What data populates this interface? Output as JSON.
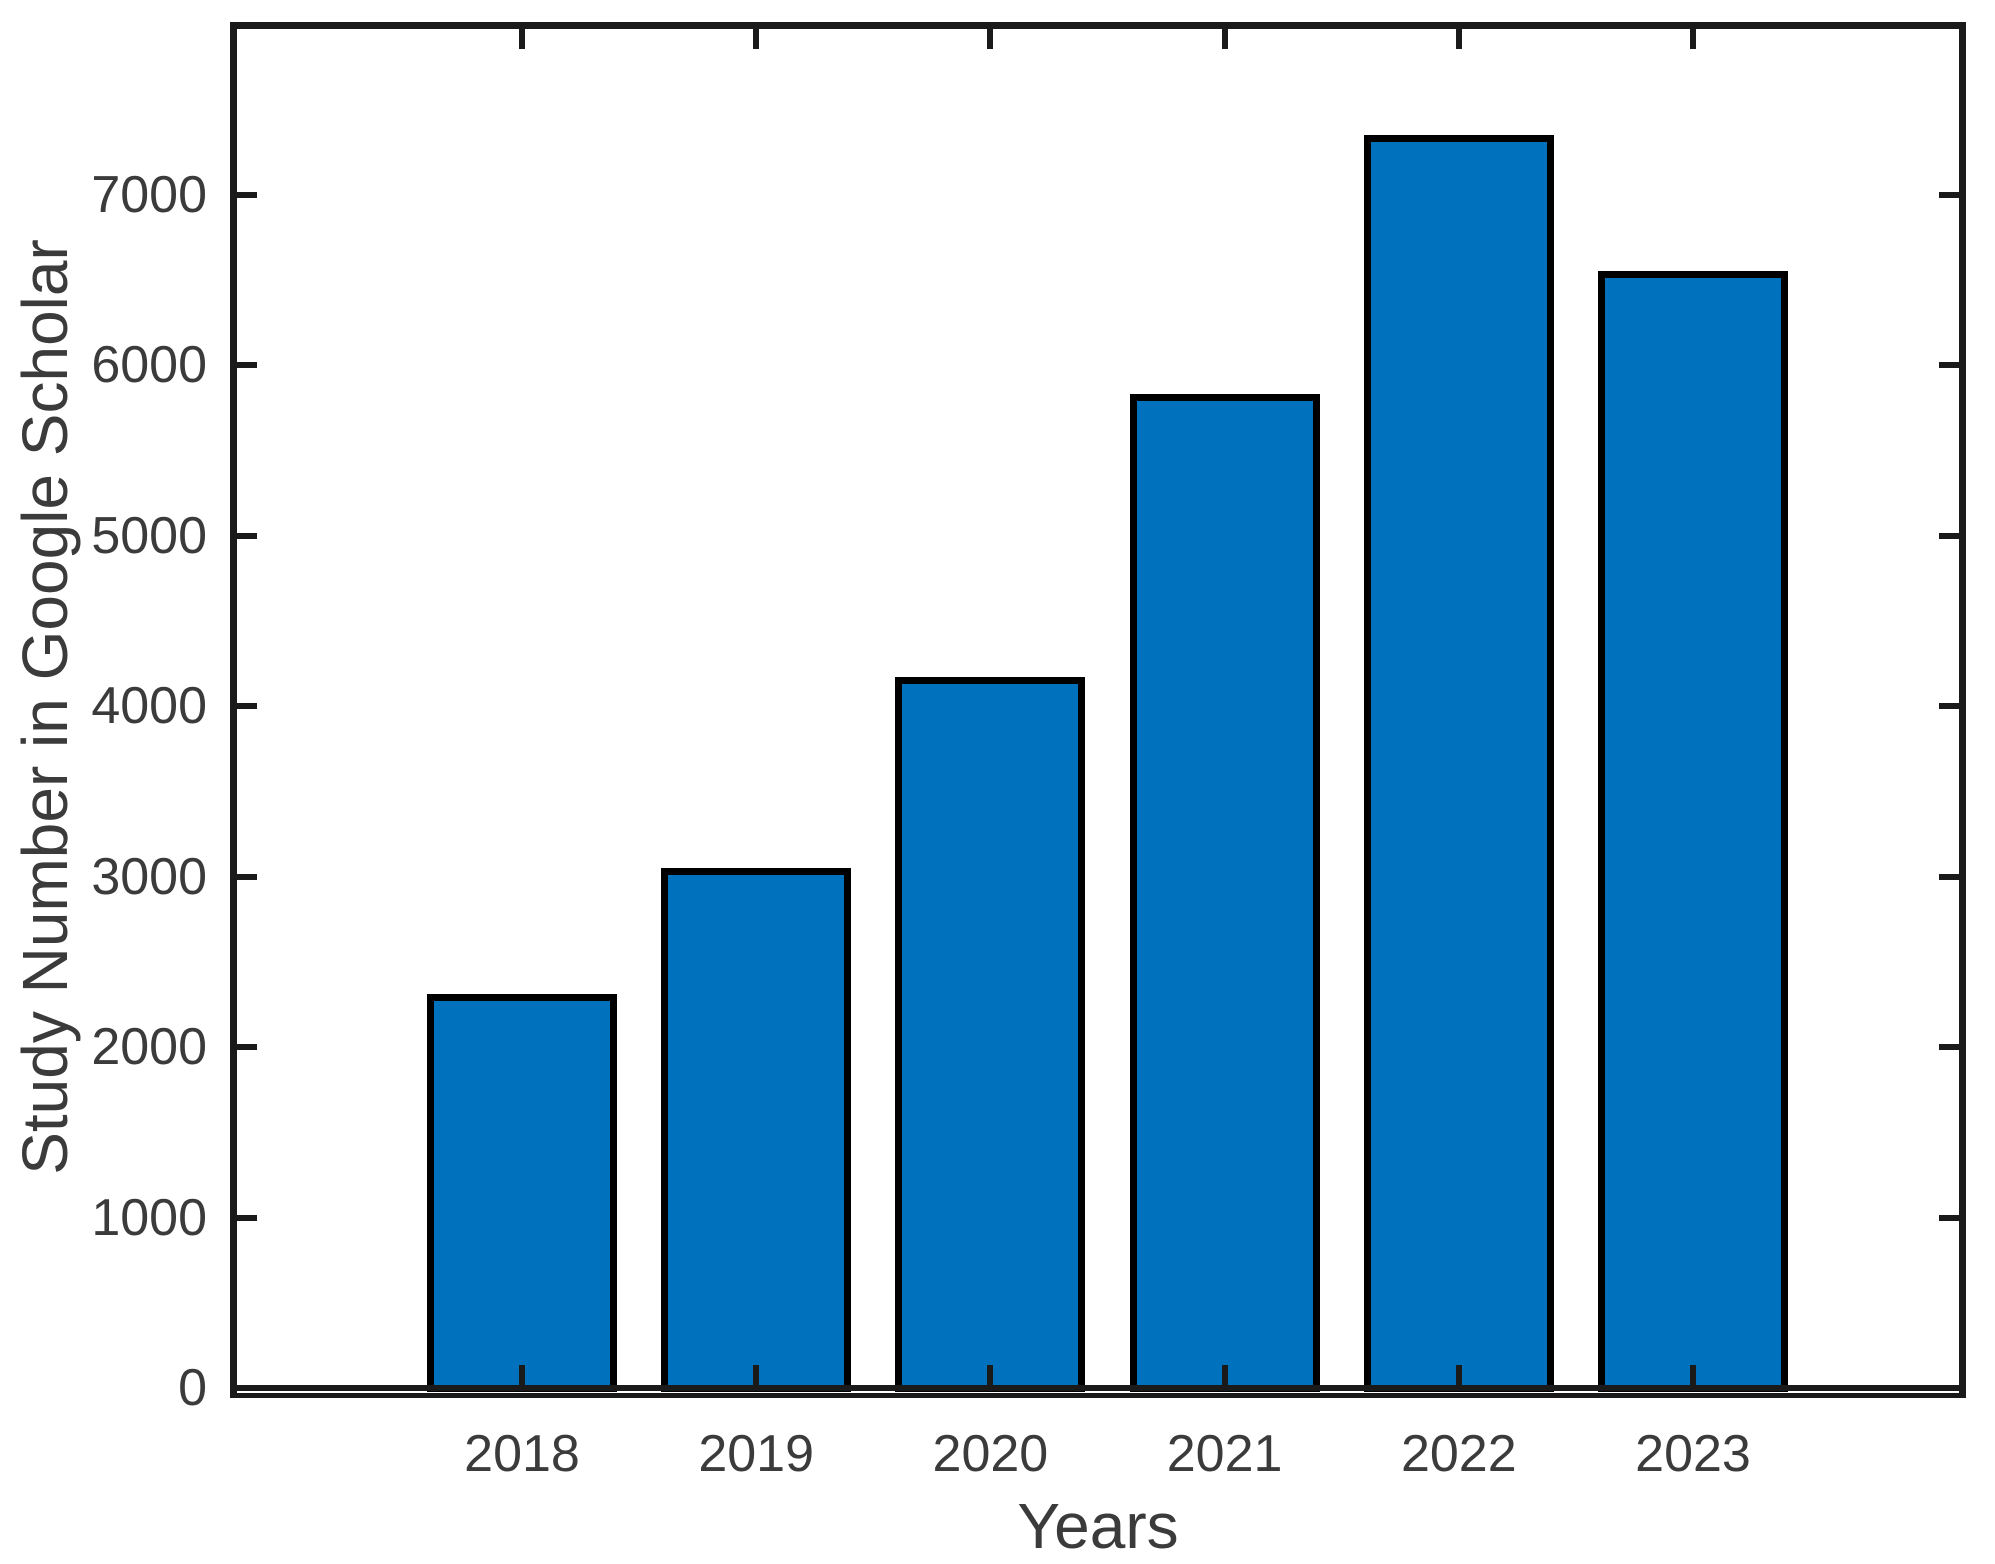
{
  "chart_data": {
    "type": "bar",
    "title": "",
    "xlabel": "Years",
    "ylabel": "Study Number in Google Scholar",
    "categories": [
      "2018",
      "2019",
      "2020",
      "2021",
      "2022",
      "2023"
    ],
    "values": [
      2310,
      3050,
      4170,
      5830,
      7350,
      6550
    ],
    "series_name": "Study Number in Google Scholar",
    "ytick_labels": [
      "0",
      "1000",
      "2000",
      "3000",
      "4000",
      "5000",
      "6000",
      "7000"
    ],
    "ylim": [
      0,
      7970
    ],
    "ytick_step": 1000,
    "grid": false,
    "legend": null,
    "bar_color": "#0072BD",
    "bar_edge_color": "#000000",
    "axis_color": "#1a1a1a",
    "text_color": "#3b3b3b",
    "background_color": "#ffffff"
  }
}
